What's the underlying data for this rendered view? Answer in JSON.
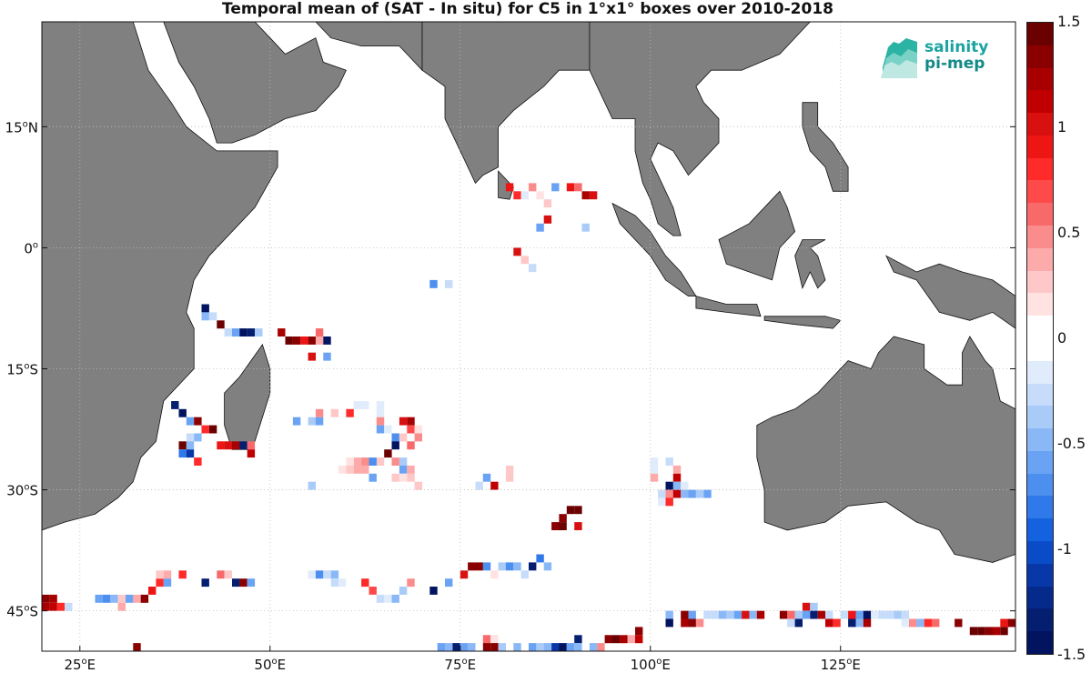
{
  "title": "Temporal mean of (SAT - In situ) for C5 in 1°x1° boxes over 2010-2018",
  "map": {
    "lon_range": [
      20,
      148
    ],
    "lat_range": [
      -50,
      28
    ],
    "ocean_color": "#ffffff",
    "land_color": "#808080",
    "grid": true,
    "lon_ticks": [
      {
        "value": 25,
        "deg": "25",
        "hemi": "E"
      },
      {
        "value": 50,
        "deg": "50",
        "hemi": "E"
      },
      {
        "value": 75,
        "deg": "75",
        "hemi": "E"
      },
      {
        "value": 100,
        "deg": "100",
        "hemi": "E"
      },
      {
        "value": 125,
        "deg": "125",
        "hemi": "E"
      }
    ],
    "lat_ticks": [
      {
        "value": 15,
        "deg": "15",
        "hemi": "N"
      },
      {
        "value": 0,
        "deg": "0",
        "hemi": ""
      },
      {
        "value": -15,
        "deg": "15",
        "hemi": "S"
      },
      {
        "value": -30,
        "deg": "30",
        "hemi": "S"
      },
      {
        "value": -45,
        "deg": "45",
        "hemi": "S"
      }
    ]
  },
  "colorbar": {
    "min": -1.5,
    "max": 1.5,
    "tick_labels": [
      "1.5",
      "1",
      "0.5",
      "0",
      "-0.5",
      "-1",
      "-1.5"
    ],
    "tick_values": [
      1.5,
      1,
      0.5,
      0,
      -0.5,
      -1,
      -1.5
    ],
    "colors": [
      "#6b0000",
      "#8a0000",
      "#a80000",
      "#c00000",
      "#d81010",
      "#ee1515",
      "#ff2a2a",
      "#ff4a4a",
      "#f86a6a",
      "#fa8c8c",
      "#fcaaaa",
      "#fec8c8",
      "#ffe2e2",
      "#ffffff",
      "#ffffff",
      "#e0ecfc",
      "#c6dcfa",
      "#a9cbf8",
      "#8ab8f6",
      "#6aa3f3",
      "#4d8fef",
      "#2f79ea",
      "#1562e0",
      "#0a4cc8",
      "#0838a8",
      "#062a8c",
      "#041e70",
      "#021460"
    ]
  },
  "logo": {
    "line1": "salinity",
    "line2": "pi-mep"
  },
  "chart_data": {
    "type": "heatmap",
    "title": "Temporal mean of (SAT - In situ) for C5 in 1°x1° boxes over 2010-2018",
    "xlabel": "",
    "ylabel": "",
    "xlim": [
      20,
      148
    ],
    "ylim": [
      -50,
      28
    ],
    "grid": true,
    "legend": "colorbar right",
    "cells": [
      [
        89,
        7,
        0.9
      ],
      [
        90,
        7,
        0.6
      ],
      [
        91,
        6,
        1.2
      ],
      [
        92,
        6,
        1.0
      ],
      [
        87,
        7,
        -0.6
      ],
      [
        84,
        7,
        0.5
      ],
      [
        85,
        6,
        0.2
      ],
      [
        81,
        7,
        0.9
      ],
      [
        82,
        6,
        0.8
      ],
      [
        83,
        6,
        -0.2
      ],
      [
        86,
        5,
        0.3
      ],
      [
        86,
        3,
        1.0
      ],
      [
        85,
        2,
        -0.6
      ],
      [
        91,
        2,
        -0.4
      ],
      [
        82,
        -1,
        1.0
      ],
      [
        83,
        -2,
        0.3
      ],
      [
        84,
        -3,
        -0.3
      ],
      [
        71,
        -5,
        -0.7
      ],
      [
        73,
        -5,
        -0.3
      ],
      [
        41,
        -8,
        -1.4
      ],
      [
        41,
        -9,
        -0.5
      ],
      [
        42,
        -9,
        -0.3
      ],
      [
        43,
        -10,
        1.4
      ],
      [
        44,
        -11,
        -0.3
      ],
      [
        45,
        -11,
        -0.6
      ],
      [
        46,
        -11,
        -1.4
      ],
      [
        47,
        -11,
        -1.3
      ],
      [
        48,
        -11,
        -0.4
      ],
      [
        51,
        -11,
        1.2
      ],
      [
        52,
        -12,
        1.4
      ],
      [
        53,
        -12,
        1.3
      ],
      [
        54,
        -12,
        0.9
      ],
      [
        55,
        -12,
        1.3
      ],
      [
        56,
        -12,
        0.4
      ],
      [
        57,
        -12,
        -1.4
      ],
      [
        56,
        -11,
        0.6
      ],
      [
        55,
        -14,
        1.0
      ],
      [
        57,
        -14,
        -0.6
      ],
      [
        37,
        -20,
        -1.3
      ],
      [
        38,
        -21,
        -1.4
      ],
      [
        39,
        -22,
        -0.6
      ],
      [
        40,
        -22,
        1.3
      ],
      [
        41,
        -23,
        0.8
      ],
      [
        42,
        -23,
        1.4
      ],
      [
        39,
        -24,
        -0.3
      ],
      [
        40,
        -24,
        -0.5
      ],
      [
        38,
        -25,
        1.4
      ],
      [
        39,
        -25,
        -0.5
      ],
      [
        38,
        -26,
        -0.8
      ],
      [
        39,
        -26,
        -1.1
      ],
      [
        40,
        -27,
        0.8
      ],
      [
        43,
        -25,
        0.9
      ],
      [
        44,
        -25,
        1.0
      ],
      [
        45,
        -25,
        1.2
      ],
      [
        46,
        -25,
        -1.3
      ],
      [
        47,
        -25,
        0.6
      ],
      [
        47,
        -26,
        1.1
      ],
      [
        53,
        -22,
        -0.6
      ],
      [
        55,
        -22,
        -0.4
      ],
      [
        56,
        -22,
        -0.6
      ],
      [
        56,
        -21,
        0.5
      ],
      [
        58,
        -21,
        0.3
      ],
      [
        60,
        -21,
        0.8
      ],
      [
        61,
        -20,
        -0.2
      ],
      [
        62,
        -20,
        -0.2
      ],
      [
        64,
        -20,
        -0.2
      ],
      [
        64,
        -21,
        -0.2
      ],
      [
        64,
        -22,
        0.5
      ],
      [
        64,
        -23,
        -0.6
      ],
      [
        65,
        -23,
        -0.2
      ],
      [
        67,
        -22,
        1.0
      ],
      [
        68,
        -22,
        1.2
      ],
      [
        68,
        -23,
        0.7
      ],
      [
        69,
        -23,
        0.2
      ],
      [
        69,
        -24,
        0.5
      ],
      [
        66,
        -24,
        -0.7
      ],
      [
        67,
        -24,
        0.3
      ],
      [
        68,
        -25,
        0.6
      ],
      [
        66,
        -25,
        -1.4
      ],
      [
        65,
        -26,
        1.4
      ],
      [
        64,
        -27,
        0.3
      ],
      [
        63,
        -27,
        -0.7
      ],
      [
        62,
        -27,
        0.5
      ],
      [
        61,
        -27,
        0.4
      ],
      [
        60,
        -27,
        0.2
      ],
      [
        62,
        -28,
        0.4
      ],
      [
        61,
        -28,
        0.4
      ],
      [
        60,
        -28,
        0.3
      ],
      [
        59,
        -28,
        0.2
      ],
      [
        63,
        -29,
        -0.6
      ],
      [
        67,
        -27,
        -0.4
      ],
      [
        66,
        -27,
        0.5
      ],
      [
        67,
        -28,
        -0.6
      ],
      [
        68,
        -28,
        0.4
      ],
      [
        66,
        -29,
        0.3
      ],
      [
        67,
        -29,
        0.2
      ],
      [
        68,
        -29,
        0.3
      ],
      [
        69,
        -30,
        0.3
      ],
      [
        55,
        -30,
        -0.4
      ],
      [
        78,
        -29,
        -0.6
      ],
      [
        79,
        -30,
        1.1
      ],
      [
        77,
        -30,
        -0.3
      ],
      [
        81,
        -29,
        0.3
      ],
      [
        81,
        -28,
        0.3
      ],
      [
        89,
        -33,
        1.4
      ],
      [
        90,
        -33,
        1.4
      ],
      [
        88,
        -34,
        1.3
      ],
      [
        87,
        -35,
        1.3
      ],
      [
        88,
        -35,
        1.4
      ],
      [
        90,
        -35,
        1.0
      ],
      [
        100,
        -27,
        -0.2
      ],
      [
        100,
        -28,
        -0.2
      ],
      [
        102,
        -27,
        -0.3
      ],
      [
        103,
        -28,
        0.4
      ],
      [
        100,
        -29,
        0.4
      ],
      [
        102,
        -30,
        -1.4
      ],
      [
        103,
        -29,
        1.1
      ],
      [
        103,
        -30,
        -0.5
      ],
      [
        104,
        -30,
        -0.2
      ],
      [
        101,
        -31,
        -0.3
      ],
      [
        102,
        -31,
        0.5
      ],
      [
        103,
        -31,
        1.1
      ],
      [
        104,
        -31,
        -0.5
      ],
      [
        105,
        -31,
        -0.6
      ],
      [
        106,
        -31,
        -0.4
      ],
      [
        107,
        -31,
        -0.6
      ],
      [
        101,
        -32,
        -0.2
      ],
      [
        102,
        -32,
        0.8
      ],
      [
        20,
        -44,
        1.3
      ],
      [
        21,
        -44,
        1.2
      ],
      [
        20,
        -45,
        1.2
      ],
      [
        21,
        -45,
        1.1
      ],
      [
        22,
        -45,
        0.8
      ],
      [
        23,
        -45,
        -0.3
      ],
      [
        27,
        -44,
        -0.6
      ],
      [
        28,
        -44,
        -0.7
      ],
      [
        29,
        -44,
        -0.5
      ],
      [
        30,
        -44,
        0.3
      ],
      [
        30,
        -45,
        0.4
      ],
      [
        31,
        -44,
        -0.6
      ],
      [
        32,
        -44,
        0.4
      ],
      [
        33,
        -44,
        1.3
      ],
      [
        34,
        -43,
        0.9
      ],
      [
        35,
        -42,
        0.8
      ],
      [
        35,
        -41,
        0.3
      ],
      [
        36,
        -41,
        0.4
      ],
      [
        36,
        -42,
        -0.6
      ],
      [
        38,
        -41,
        0.8
      ],
      [
        41,
        -42,
        -1.3
      ],
      [
        43,
        -41,
        0.6
      ],
      [
        44,
        -41,
        0.3
      ],
      [
        45,
        -42,
        -1.3
      ],
      [
        46,
        -42,
        1.3
      ],
      [
        47,
        -42,
        -0.6
      ],
      [
        32,
        -50,
        1.3
      ],
      [
        55,
        -41,
        -0.2
      ],
      [
        56,
        -41,
        -0.7
      ],
      [
        57,
        -41,
        -0.3
      ],
      [
        58,
        -41,
        -0.5
      ],
      [
        58,
        -42,
        -0.3
      ],
      [
        59,
        -42,
        -0.2
      ],
      [
        62,
        -42,
        0.8
      ],
      [
        63,
        -43,
        0.7
      ],
      [
        64,
        -44,
        -0.3
      ],
      [
        65,
        -44,
        -0.2
      ],
      [
        66,
        -44,
        -0.5
      ],
      [
        67,
        -43,
        -0.4
      ],
      [
        68,
        -42,
        0.5
      ],
      [
        71,
        -43,
        -1.4
      ],
      [
        73,
        -42,
        -0.6
      ],
      [
        75,
        -41,
        1.0
      ],
      [
        76,
        -40,
        1.3
      ],
      [
        77,
        -40,
        1.3
      ],
      [
        78,
        -40,
        -0.7
      ],
      [
        79,
        -41,
        0.2
      ],
      [
        80,
        -40,
        -0.4
      ],
      [
        81,
        -40,
        -0.7
      ],
      [
        82,
        -40,
        -0.5
      ],
      [
        83,
        -41,
        -0.3
      ],
      [
        84,
        -40,
        -1.3
      ],
      [
        85,
        -39,
        -0.8
      ],
      [
        86,
        -40,
        -0.5
      ],
      [
        72,
        -50,
        -0.6
      ],
      [
        73,
        -50,
        -0.5
      ],
      [
        74,
        -50,
        -1.3
      ],
      [
        75,
        -50,
        -0.6
      ],
      [
        76,
        -50,
        -0.5
      ],
      [
        78,
        -49,
        0.6
      ],
      [
        79,
        -49,
        0.2
      ],
      [
        78,
        -50,
        1.3
      ],
      [
        79,
        -50,
        1.3
      ],
      [
        80,
        -50,
        -0.4
      ],
      [
        82,
        -50,
        -0.5
      ],
      [
        84,
        -50,
        -0.6
      ],
      [
        85,
        -50,
        -0.4
      ],
      [
        86,
        -50,
        -0.5
      ],
      [
        87,
        -50,
        -1.1
      ],
      [
        88,
        -50,
        -1.4
      ],
      [
        89,
        -50,
        -0.6
      ],
      [
        90,
        -49,
        -1.3
      ],
      [
        90,
        -50,
        -0.5
      ],
      [
        92,
        -50,
        -0.5
      ],
      [
        93,
        -50,
        0.5
      ],
      [
        94,
        -49,
        1.3
      ],
      [
        95,
        -49,
        1.4
      ],
      [
        96,
        -49,
        1.2
      ],
      [
        97,
        -49,
        0.4
      ],
      [
        98,
        -48,
        1.3
      ],
      [
        98,
        -49,
        1.1
      ],
      [
        102,
        -46,
        -0.5
      ],
      [
        102,
        -47,
        -1.4
      ],
      [
        104,
        -46,
        1.3
      ],
      [
        104,
        -47,
        1.2
      ],
      [
        105,
        -46,
        -0.6
      ],
      [
        105,
        -47,
        1.3
      ],
      [
        106,
        -47,
        0.5
      ],
      [
        107,
        -46,
        -0.3
      ],
      [
        108,
        -46,
        -0.3
      ],
      [
        109,
        -46,
        -0.5
      ],
      [
        110,
        -46,
        -0.4
      ],
      [
        111,
        -46,
        -0.6
      ],
      [
        112,
        -46,
        1.0
      ],
      [
        113,
        -46,
        -0.5
      ],
      [
        114,
        -46,
        1.2
      ],
      [
        117,
        -46,
        1.3
      ],
      [
        118,
        -46,
        0.6
      ],
      [
        118,
        -47,
        -0.3
      ],
      [
        119,
        -46,
        -0.4
      ],
      [
        119,
        -47,
        -1.3
      ],
      [
        120,
        -45,
        1.0
      ],
      [
        120,
        -46,
        -0.6
      ],
      [
        121,
        -45,
        -0.4
      ],
      [
        121,
        -46,
        -1.3
      ],
      [
        122,
        -46,
        1.2
      ],
      [
        123,
        -46,
        -0.3
      ],
      [
        123,
        -47,
        1.1
      ],
      [
        124,
        -47,
        0.8
      ],
      [
        125,
        -46,
        -0.3
      ],
      [
        126,
        -46,
        0.9
      ],
      [
        126,
        -47,
        -1.3
      ],
      [
        127,
        -46,
        -0.6
      ],
      [
        127,
        -47,
        -0.5
      ],
      [
        128,
        -46,
        -1.4
      ],
      [
        128,
        -47,
        1.2
      ],
      [
        129,
        -46,
        -0.2
      ],
      [
        130,
        -46,
        -0.3
      ],
      [
        131,
        -46,
        -0.3
      ],
      [
        132,
        -46,
        -0.4
      ],
      [
        133,
        -46,
        -0.3
      ],
      [
        133,
        -47,
        -0.2
      ],
      [
        134,
        -47,
        0.5
      ],
      [
        135,
        -47,
        -0.5
      ],
      [
        136,
        -47,
        0.8
      ],
      [
        137,
        -47,
        0.6
      ],
      [
        140,
        -47,
        1.3
      ],
      [
        142,
        -48,
        1.4
      ],
      [
        143,
        -48,
        1.4
      ],
      [
        144,
        -48,
        1.3
      ],
      [
        145,
        -48,
        1.2
      ],
      [
        146,
        -48,
        1.4
      ],
      [
        146,
        -47,
        0.9
      ],
      [
        147,
        -47,
        1.3
      ]
    ]
  }
}
